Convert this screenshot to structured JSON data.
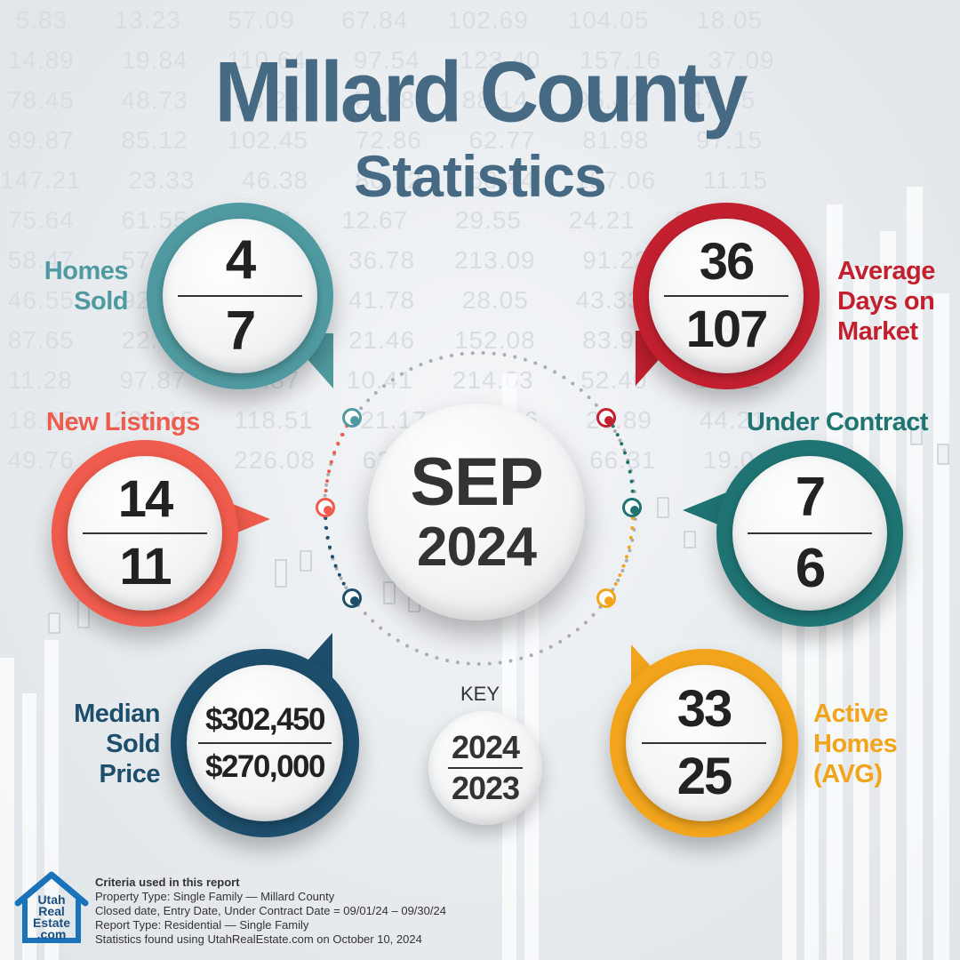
{
  "title": {
    "main": "Millard County",
    "sub": "Statistics"
  },
  "center": {
    "month": "SEP",
    "year": "2024"
  },
  "stats": {
    "homes_sold": {
      "label_lines": [
        "Homes",
        "Sold"
      ],
      "current": "4",
      "previous": "7",
      "color": "#4f9aa0"
    },
    "avg_days": {
      "label_lines": [
        "Average",
        "Days on",
        "Market"
      ],
      "current": "36",
      "previous": "107",
      "color": "#c3202f"
    },
    "new_listings": {
      "label": "New Listings",
      "current": "14",
      "previous": "11",
      "color": "#ef5b4c"
    },
    "under_contract": {
      "label": "Under Contract",
      "current": "7",
      "previous": "6",
      "color": "#1f7473"
    },
    "median_price": {
      "label_lines": [
        "Median",
        "Sold",
        "Price"
      ],
      "current": "$302,450",
      "previous": "$270,000",
      "color": "#1d4e6b"
    },
    "active_homes": {
      "label_lines": [
        "Active",
        "Homes",
        "(AVG)"
      ],
      "current": "33",
      "previous": "25",
      "color": "#f2a51c"
    }
  },
  "key": {
    "label": "KEY",
    "current": "2024",
    "previous": "2023"
  },
  "logo": {
    "line1": "Utah",
    "line2": "Real",
    "line3": "Estate",
    "line4": ".com"
  },
  "criteria": {
    "heading": "Criteria used in this report",
    "lines": [
      "Property Type: Single Family — Millard County",
      "Closed date, Entry Date, Under Contract Date = 09/01/24 – 09/30/24",
      "Report Type: Residential — Single Family",
      "Statistics found using UtahRealEstate.com on October 10, 2024"
    ]
  },
  "background_numbers": [
    "  5.83      13.23      57.09      67.84     102.69     104.05      18.05",
    " 14.89      19.84     110.64      97.54     123.40     157.16      37.09",
    " 78.45      48.73      93.21      41.08      88.14      95.44      47.65",
    " 99.87      85.12     102.45      72.86      62.77      81.98      97.15",
    "147.21      23.33      46.38      80.12      60.44     157.06      11.15",
    " 75.64      61.55       4.21      12.67      29.55      24.21     547.16",
    " 58.47      57.28      57.28      36.78     213.09      91.22      15.15",
    " 46.55      92.97      92.97      41.78      28.05      43.33      71.43",
    " 87.65      22.01      22.01      21.46     152.08      83.92      60.18",
    " 11.28      97.87      87.87      10.41     214.63      52.40      36.72",
    " 18.05     238.15     118.51      21.17      11.66      23.89      44.21",
    " 49.76     387.56     226.08      62.49      81.05      66.31      19.04"
  ]
}
